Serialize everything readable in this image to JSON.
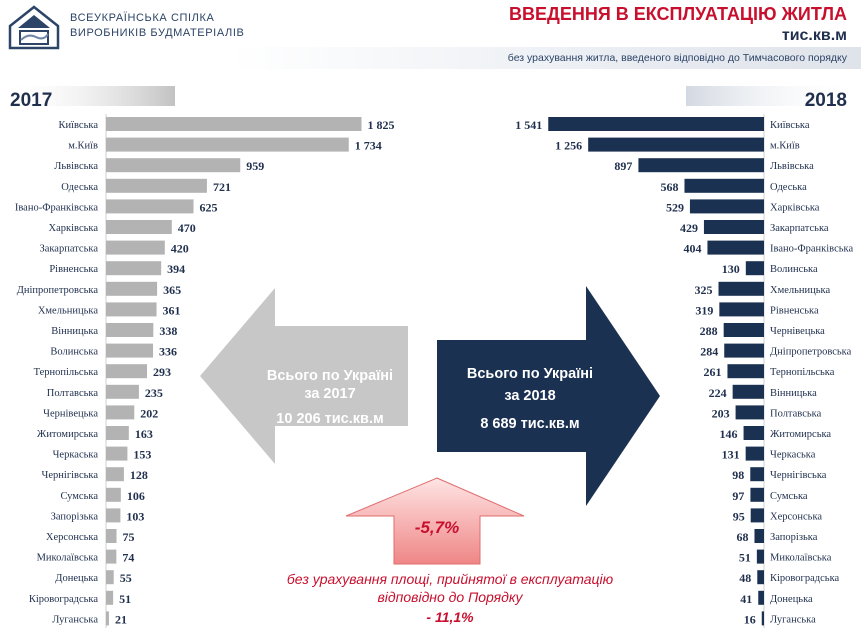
{
  "header": {
    "org_line1": "ВСЕУКРАЇНСЬКА СПІЛКА",
    "org_line2": "ВИРОБНИКІВ БУДМАТЕРІАЛІВ",
    "title": "ВВЕДЕННЯ В ЕКСПЛУАТАЦІЮ ЖИТЛА",
    "unit": "тис.кв.м",
    "note": "без урахування житла, введеного відповідно до Тимчасового порядку"
  },
  "colors": {
    "bar_2017": "#b3b3b3",
    "bar_2018": "#1b3152",
    "arrow_2017": "#c7c7c7",
    "arrow_2018": "#1b3152",
    "accent_red": "#c8102e",
    "change_arrow_top": "#ffd6d6",
    "change_arrow_bottom": "#f08a8a"
  },
  "chart_data": [
    {
      "type": "bar",
      "orientation": "horizontal",
      "title": "2017",
      "categories": [
        "Київська",
        "м.Київ",
        "Львівська",
        "Одеська",
        "Івано-Франківська",
        "Харківська",
        "Закарпатська",
        "Рівненська",
        "Дніпропетровська",
        "Хмельницька",
        "Вінницька",
        "Волинська",
        "Тернопільська",
        "Полтавська",
        "Чернівецька",
        "Житомирська",
        "Черкаська",
        "Чернігівська",
        "Сумська",
        "Запорізька",
        "Херсонська",
        "Миколаївська",
        "Донецька",
        "Кіровоградська",
        "Луганська"
      ],
      "values": [
        1825,
        1734,
        959,
        721,
        625,
        470,
        420,
        394,
        365,
        361,
        338,
        336,
        293,
        235,
        202,
        163,
        153,
        128,
        106,
        103,
        75,
        74,
        55,
        51,
        21
      ],
      "value_labels": [
        "1 825",
        "1 734",
        "959",
        "721",
        "625",
        "470",
        "420",
        "394",
        "365",
        "361",
        "338",
        "336",
        "293",
        "235",
        "202",
        "163",
        "153",
        "128",
        "106",
        "103",
        "75",
        "74",
        "55",
        "51",
        "21"
      ]
    },
    {
      "type": "bar",
      "orientation": "horizontal",
      "title": "2018",
      "categories": [
        "Київська",
        "м.Київ",
        "Львівська",
        "Одеська",
        "Харківська",
        "Закарпатська",
        "Івано-Франківська",
        "Волинська",
        "Хмельницька",
        "Рівненська",
        "Чернівецька",
        "Дніпропетровська",
        "Тернопільська",
        "Вінницька",
        "Полтавська",
        "Житомирська",
        "Черкаська",
        "Чернігівська",
        "Сумська",
        "Херсонська",
        "Запорізька",
        "Миколаївська",
        "Кіровоградська",
        "Донецька",
        "Луганська"
      ],
      "values": [
        1541,
        1256,
        897,
        568,
        529,
        429,
        404,
        130,
        325,
        319,
        288,
        284,
        261,
        224,
        203,
        146,
        131,
        98,
        97,
        95,
        68,
        51,
        48,
        41,
        16
      ],
      "value_labels": [
        "1 541",
        "1 256",
        "897",
        "568",
        "529",
        "429",
        "404",
        "130",
        "325",
        "319",
        "288",
        "284",
        "261",
        "224",
        "203",
        "146",
        "131",
        "98",
        "97",
        "95",
        "68",
        "51",
        "48",
        "41",
        "16"
      ]
    }
  ],
  "totals": {
    "left": {
      "line1": "Всього по Україні",
      "line2": "за 2017",
      "line3": "10 206 тис.кв.м"
    },
    "right": {
      "line1": "Всього по Україні",
      "line2": "за 2018",
      "line3": "8 689 тис.кв.м"
    }
  },
  "change": {
    "value": "-5,7%",
    "note_line1": "без урахування площі, прийнятої в експлуатацію",
    "note_line2": "відповідно до Порядку",
    "alt_value": "- 11,1%"
  }
}
